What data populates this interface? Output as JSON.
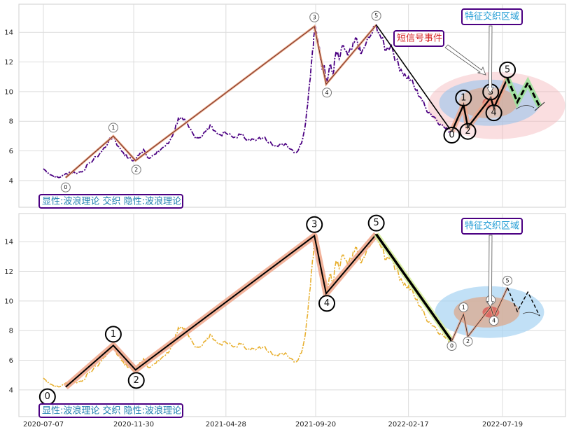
{
  "chart_data": {
    "type": "line",
    "xlabel": "",
    "ylabel": "",
    "x_ticks": [
      "2020-07-07",
      "2020-11-30",
      "2021-04-28",
      "2021-09-20",
      "2022-02-17",
      "2022-07-19"
    ],
    "grid": true,
    "panels": [
      {
        "ylim": [
          2.2,
          15.9
        ],
        "y_ticks": [
          4,
          6,
          8,
          10,
          12,
          14
        ],
        "price_color": "#4b0082",
        "legend_text": "显性:波浪理论 交织 隐性:波浪理论",
        "annotations": [
          {
            "text": "特征交织区域",
            "color": "#1f9bd4"
          },
          {
            "text": "短信号事件",
            "color": "#d62728"
          }
        ],
        "major_wave": {
          "labels": [
            "0",
            "1",
            "2",
            "3",
            "4",
            "5"
          ],
          "dates": [
            "2020-08-12",
            "2020-10-28",
            "2020-12-03",
            "2021-09-18",
            "2021-10-07",
            "2021-12-27"
          ],
          "values": [
            4.2,
            7.0,
            5.35,
            14.4,
            10.5,
            14.5
          ],
          "projection_dates": [
            "2021-12-27",
            "2022-04-28"
          ],
          "projection_values": [
            14.5,
            7.3
          ]
        },
        "minor_wave": {
          "labels": [
            "0",
            "1",
            "2",
            "3",
            "4",
            "5"
          ],
          "dates": [
            "2022-04-28",
            "2022-05-17",
            "2022-05-24",
            "2022-06-30",
            "2022-07-05",
            "2022-07-27"
          ],
          "values": [
            7.3,
            9.1,
            7.6,
            9.6,
            8.9,
            10.9
          ],
          "projection_dates": [
            "2022-07-27",
            "2022-08-12",
            "2022-08-29",
            "2022-09-17"
          ],
          "projection_values": [
            10.9,
            9.3,
            10.6,
            9.0
          ]
        }
      },
      {
        "ylim": [
          2.2,
          15.9
        ],
        "y_ticks": [
          4,
          6,
          8,
          10,
          12,
          14
        ],
        "price_color": "#e8b030",
        "legend_text": "显性:波浪理论 交织 隐性:波浪理论",
        "annotations": [
          {
            "text": "特征交织区域",
            "color": "#1f9bd4"
          }
        ],
        "major_wave": {
          "labels": [
            "0",
            "1",
            "2",
            "3",
            "4",
            "5"
          ],
          "dates": [
            "2020-08-12",
            "2020-10-28",
            "2020-12-03",
            "2021-09-18",
            "2021-10-07",
            "2021-12-27"
          ],
          "values": [
            4.2,
            7.0,
            5.35,
            14.4,
            10.5,
            14.5
          ],
          "projection_dates": [
            "2021-12-27",
            "2022-04-28"
          ],
          "projection_values": [
            14.5,
            7.3
          ]
        },
        "minor_wave": {
          "labels": [
            "0",
            "1",
            "2",
            "3",
            "4",
            "5"
          ],
          "dates": [
            "2022-04-28",
            "2022-05-17",
            "2022-05-24",
            "2022-06-30",
            "2022-07-05",
            "2022-07-27"
          ],
          "values": [
            7.3,
            9.1,
            7.6,
            9.6,
            8.9,
            10.9
          ],
          "projection_dates": [
            "2022-07-27",
            "2022-08-12",
            "2022-08-29",
            "2022-09-17"
          ],
          "projection_values": [
            10.9,
            9.3,
            10.6,
            9.0
          ]
        }
      }
    ],
    "price_series": {
      "dates": [
        "2020-07-07",
        "2020-07-15",
        "2020-07-23",
        "2020-08-01",
        "2020-08-10",
        "2020-08-20",
        "2020-08-31",
        "2020-09-10",
        "2020-09-20",
        "2020-10-01",
        "2020-10-10",
        "2020-10-20",
        "2020-10-28",
        "2020-11-05",
        "2020-11-13",
        "2020-11-22",
        "2020-11-30",
        "2020-12-08",
        "2020-12-16",
        "2020-12-25",
        "2021-01-05",
        "2021-01-15",
        "2021-01-25",
        "2021-02-03",
        "2021-02-10",
        "2021-02-18",
        "2021-02-27",
        "2021-03-08",
        "2021-03-17",
        "2021-03-26",
        "2021-04-05",
        "2021-04-15",
        "2021-04-28",
        "2021-05-10",
        "2021-05-22",
        "2021-06-03",
        "2021-06-15",
        "2021-06-27",
        "2021-07-09",
        "2021-07-21",
        "2021-08-02",
        "2021-08-12",
        "2021-08-20",
        "2021-08-28",
        "2021-09-04",
        "2021-09-10",
        "2021-09-15",
        "2021-09-19",
        "2021-09-22",
        "2021-09-26",
        "2021-09-30",
        "2021-10-04",
        "2021-10-08",
        "2021-10-13",
        "2021-10-18",
        "2021-10-23",
        "2021-10-28",
        "2021-11-04",
        "2021-11-11",
        "2021-11-18",
        "2021-11-25",
        "2021-12-02",
        "2021-12-10",
        "2021-12-18",
        "2021-12-27",
        "2022-01-04",
        "2022-01-12",
        "2022-01-20",
        "2022-01-28",
        "2022-02-05",
        "2022-02-13",
        "2022-02-21",
        "2022-03-01",
        "2022-03-09",
        "2022-03-17",
        "2022-03-25",
        "2022-04-02",
        "2022-04-10",
        "2022-04-18",
        "2022-04-28"
      ],
      "values": [
        4.8,
        4.5,
        4.3,
        4.2,
        4.4,
        4.6,
        4.5,
        4.7,
        5.2,
        5.6,
        6.0,
        6.6,
        7.0,
        6.3,
        5.9,
        5.5,
        5.35,
        5.7,
        6.1,
        5.5,
        5.8,
        6.2,
        6.5,
        7.3,
        8.2,
        8.1,
        7.6,
        7.0,
        6.9,
        7.3,
        7.7,
        7.1,
        7.2,
        6.9,
        7.1,
        6.8,
        6.7,
        6.9,
        6.6,
        6.3,
        6.5,
        6.1,
        5.9,
        6.5,
        8.0,
        10.5,
        12.8,
        14.4,
        13.6,
        13.0,
        11.6,
        11.8,
        10.5,
        11.8,
        11.2,
        12.7,
        12.2,
        13.1,
        12.4,
        12.9,
        13.6,
        12.5,
        13.2,
        13.8,
        14.5,
        13.6,
        12.8,
        13.2,
        12.1,
        11.5,
        11.0,
        10.8,
        10.1,
        9.6,
        8.9,
        8.5,
        8.2,
        7.8,
        7.5,
        7.3
      ]
    }
  }
}
